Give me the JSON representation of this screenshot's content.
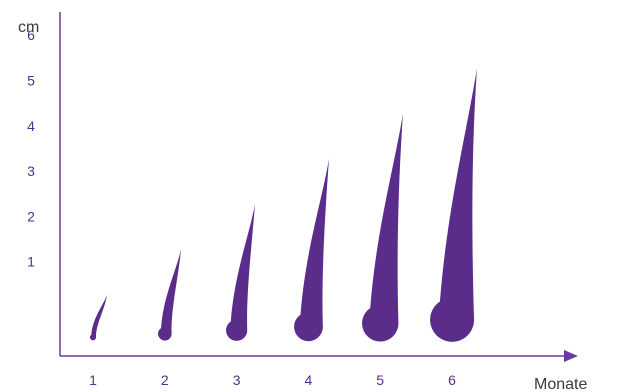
{
  "chart_data": {
    "type": "bar",
    "title": "",
    "ylabel": "cm",
    "xlabel": "Monate",
    "categories": [
      "1",
      "2",
      "3",
      "4",
      "5",
      "6"
    ],
    "values": [
      1.2,
      2.2,
      3.2,
      4.2,
      5.2,
      6.2
    ],
    "yticks": [
      "1",
      "2",
      "3",
      "4",
      "5",
      "6"
    ],
    "ylim": [
      0,
      7
    ],
    "grid": false,
    "colors": {
      "series": "#5a2d8a",
      "axis": "#6a3aa2",
      "tick": "#5a2d8a",
      "title": "#3a3a3a"
    }
  }
}
